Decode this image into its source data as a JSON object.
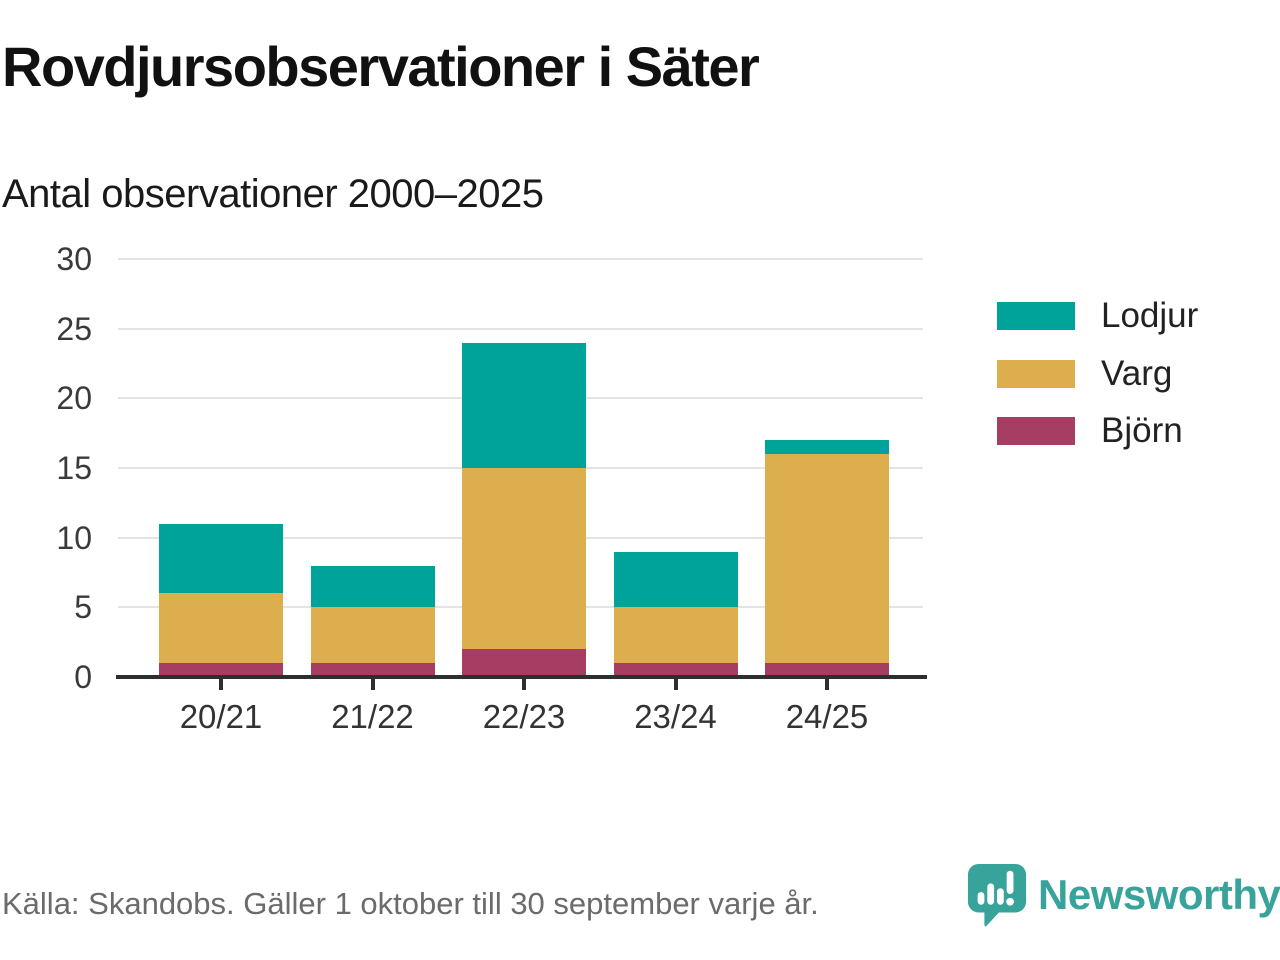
{
  "header": {
    "title": "Rovdjursobservationer i Säter",
    "subtitle": "Antal observationer 2000–2025"
  },
  "chart_data": {
    "type": "bar",
    "stacked": true,
    "title": "Rovdjursobservationer i Säter",
    "subtitle": "Antal observationer 2000–2025",
    "categories": [
      "20/21",
      "21/22",
      "22/23",
      "23/24",
      "24/25"
    ],
    "series": [
      {
        "name": "Lodjur",
        "color": "#00a39a",
        "values": [
          5,
          3,
          9,
          4,
          1
        ]
      },
      {
        "name": "Varg",
        "color": "#dcae4e",
        "values": [
          5,
          4,
          13,
          4,
          15
        ]
      },
      {
        "name": "Björn",
        "color": "#a63e63",
        "values": [
          1,
          1,
          2,
          1,
          1
        ]
      }
    ],
    "stack_order_bottom_to_top": [
      "Björn",
      "Varg",
      "Lodjur"
    ],
    "totals": [
      11,
      8,
      24,
      9,
      17
    ],
    "xlabel": "",
    "ylabel": "",
    "ylim": [
      0,
      30
    ],
    "y_ticks": [
      0,
      5,
      10,
      15,
      20,
      25,
      30
    ],
    "grid": "horizontal",
    "legend_position": "right"
  },
  "footer": {
    "source": "Källa: Skandobs. Gäller 1 oktober till 30 september varje år.",
    "brand": "Newsworthy"
  },
  "colors": {
    "grid": "#e4e4e4",
    "axis": "#2e2e2e",
    "brand_teal": "#38a39a"
  }
}
